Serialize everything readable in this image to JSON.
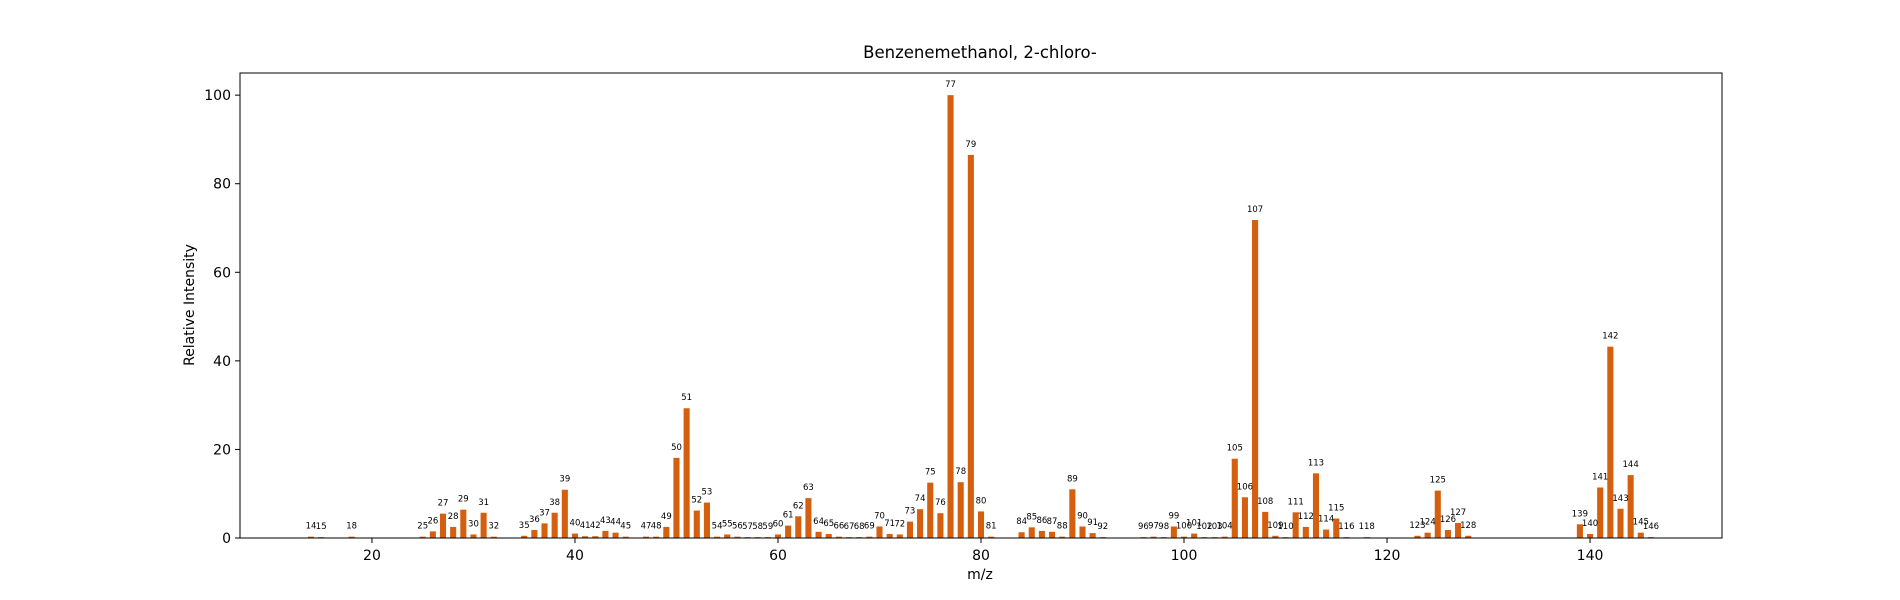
{
  "chart_data": {
    "type": "bar",
    "title": "Benzenemethanol, 2-chloro-",
    "xlabel": "m/z",
    "ylabel": "Relative Intensity",
    "xlim": [
      7,
      153
    ],
    "ylim": [
      0,
      105
    ],
    "x_ticks": [
      20,
      40,
      60,
      80,
      100,
      120,
      140
    ],
    "y_ticks": [
      0,
      20,
      40,
      60,
      80,
      100
    ],
    "bar_color": "#d45f0e",
    "grid": false,
    "legend": "none",
    "peaks": [
      {
        "mz": 14,
        "intensity": 0.3
      },
      {
        "mz": 15,
        "intensity": 0.2
      },
      {
        "mz": 18,
        "intensity": 0.3
      },
      {
        "mz": 25,
        "intensity": 0.3
      },
      {
        "mz": 26,
        "intensity": 1.5
      },
      {
        "mz": 27,
        "intensity": 5.5
      },
      {
        "mz": 28,
        "intensity": 2.5
      },
      {
        "mz": 29,
        "intensity": 6.4
      },
      {
        "mz": 30,
        "intensity": 0.8
      },
      {
        "mz": 31,
        "intensity": 5.7
      },
      {
        "mz": 32,
        "intensity": 0.3
      },
      {
        "mz": 35,
        "intensity": 0.5
      },
      {
        "mz": 36,
        "intensity": 1.8
      },
      {
        "mz": 37,
        "intensity": 3.3
      },
      {
        "mz": 38,
        "intensity": 5.7
      },
      {
        "mz": 39,
        "intensity": 10.9
      },
      {
        "mz": 40,
        "intensity": 1.0
      },
      {
        "mz": 41,
        "intensity": 0.4
      },
      {
        "mz": 42,
        "intensity": 0.4
      },
      {
        "mz": 43,
        "intensity": 1.6
      },
      {
        "mz": 44,
        "intensity": 1.2
      },
      {
        "mz": 45,
        "intensity": 0.3
      },
      {
        "mz": 47,
        "intensity": 0.3
      },
      {
        "mz": 48,
        "intensity": 0.3
      },
      {
        "mz": 49,
        "intensity": 2.5
      },
      {
        "mz": 50,
        "intensity": 18.1
      },
      {
        "mz": 51,
        "intensity": 29.3
      },
      {
        "mz": 52,
        "intensity": 6.2
      },
      {
        "mz": 53,
        "intensity": 8.0
      },
      {
        "mz": 54,
        "intensity": 0.3
      },
      {
        "mz": 55,
        "intensity": 0.8
      },
      {
        "mz": 56,
        "intensity": 0.3
      },
      {
        "mz": 57,
        "intensity": 0.2
      },
      {
        "mz": 58,
        "intensity": 0.2
      },
      {
        "mz": 59,
        "intensity": 0.2
      },
      {
        "mz": 60,
        "intensity": 0.8
      },
      {
        "mz": 61,
        "intensity": 2.8
      },
      {
        "mz": 62,
        "intensity": 4.9
      },
      {
        "mz": 63,
        "intensity": 9.0
      },
      {
        "mz": 64,
        "intensity": 1.4
      },
      {
        "mz": 65,
        "intensity": 0.9
      },
      {
        "mz": 66,
        "intensity": 0.3
      },
      {
        "mz": 67,
        "intensity": 0.2
      },
      {
        "mz": 68,
        "intensity": 0.2
      },
      {
        "mz": 69,
        "intensity": 0.3
      },
      {
        "mz": 70,
        "intensity": 2.6
      },
      {
        "mz": 71,
        "intensity": 0.9
      },
      {
        "mz": 72,
        "intensity": 0.8
      },
      {
        "mz": 73,
        "intensity": 3.7
      },
      {
        "mz": 74,
        "intensity": 6.5
      },
      {
        "mz": 75,
        "intensity": 12.5
      },
      {
        "mz": 76,
        "intensity": 5.6
      },
      {
        "mz": 77,
        "intensity": 100
      },
      {
        "mz": 78,
        "intensity": 12.6
      },
      {
        "mz": 79,
        "intensity": 86.5
      },
      {
        "mz": 80,
        "intensity": 6.0
      },
      {
        "mz": 81,
        "intensity": 0.3
      },
      {
        "mz": 84,
        "intensity": 1.3
      },
      {
        "mz": 85,
        "intensity": 2.4
      },
      {
        "mz": 86,
        "intensity": 1.6
      },
      {
        "mz": 87,
        "intensity": 1.4
      },
      {
        "mz": 88,
        "intensity": 0.3
      },
      {
        "mz": 89,
        "intensity": 11.0
      },
      {
        "mz": 90,
        "intensity": 2.6
      },
      {
        "mz": 91,
        "intensity": 1.1
      },
      {
        "mz": 92,
        "intensity": 0.2
      },
      {
        "mz": 96,
        "intensity": 0.2
      },
      {
        "mz": 97,
        "intensity": 0.3
      },
      {
        "mz": 98,
        "intensity": 0.2
      },
      {
        "mz": 99,
        "intensity": 2.6
      },
      {
        "mz": 100,
        "intensity": 0.3
      },
      {
        "mz": 101,
        "intensity": 1.0
      },
      {
        "mz": 102,
        "intensity": 0.2
      },
      {
        "mz": 103,
        "intensity": 0.2
      },
      {
        "mz": 104,
        "intensity": 0.3
      },
      {
        "mz": 105,
        "intensity": 17.9
      },
      {
        "mz": 106,
        "intensity": 9.2
      },
      {
        "mz": 107,
        "intensity": 71.8
      },
      {
        "mz": 108,
        "intensity": 5.9
      },
      {
        "mz": 109,
        "intensity": 0.5
      },
      {
        "mz": 110,
        "intensity": 0.2
      },
      {
        "mz": 111,
        "intensity": 5.8
      },
      {
        "mz": 112,
        "intensity": 2.5
      },
      {
        "mz": 113,
        "intensity": 14.6
      },
      {
        "mz": 114,
        "intensity": 1.9
      },
      {
        "mz": 115,
        "intensity": 4.4
      },
      {
        "mz": 116,
        "intensity": 0.2
      },
      {
        "mz": 118,
        "intensity": 0.2
      },
      {
        "mz": 123,
        "intensity": 0.5
      },
      {
        "mz": 124,
        "intensity": 1.2
      },
      {
        "mz": 125,
        "intensity": 10.7
      },
      {
        "mz": 126,
        "intensity": 1.8
      },
      {
        "mz": 127,
        "intensity": 3.4
      },
      {
        "mz": 128,
        "intensity": 0.5
      },
      {
        "mz": 139,
        "intensity": 3.1
      },
      {
        "mz": 140,
        "intensity": 0.9
      },
      {
        "mz": 141,
        "intensity": 11.4
      },
      {
        "mz": 142,
        "intensity": 43.2
      },
      {
        "mz": 143,
        "intensity": 6.6
      },
      {
        "mz": 144,
        "intensity": 14.2
      },
      {
        "mz": 145,
        "intensity": 1.2
      },
      {
        "mz": 146,
        "intensity": 0.2
      }
    ]
  }
}
